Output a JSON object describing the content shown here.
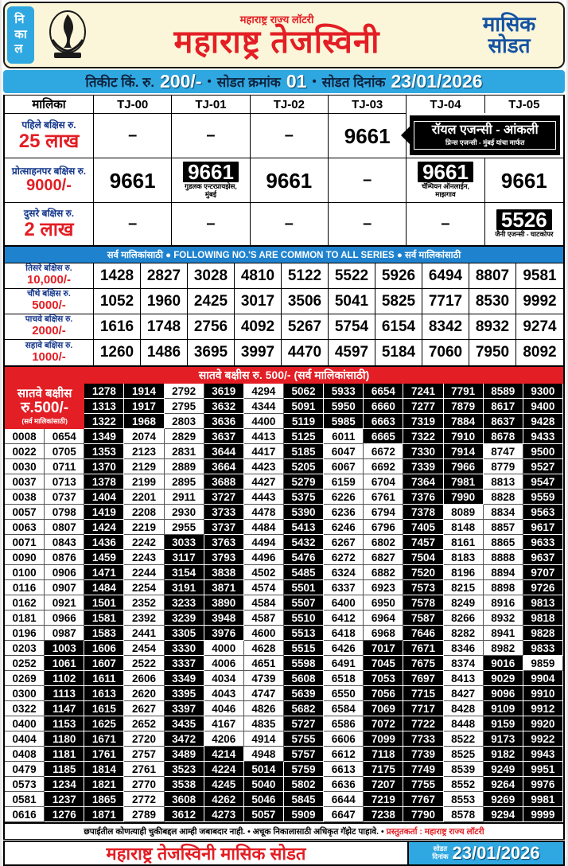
{
  "header": {
    "tab_vertical_text": "नि\nका\nल",
    "org_line": "महाराष्ट्र राज्य लॉटरी",
    "title": "महाराष्ट्र तेजस्विनी",
    "scheme_line1": "मासिक",
    "scheme_line2": "सोडत",
    "logo_icon": "maharashtra-lottery-emblem"
  },
  "info_bar": {
    "ticket_label": "तिकीट किं. रु.",
    "ticket_price": "200/-",
    "bullet": "•",
    "draw_label": "सोडत क्रमांक",
    "draw_number": "01",
    "date_label": "सोडत दिनांक",
    "draw_date": "23/01/2026"
  },
  "colors": {
    "accent_red": "#e31e24",
    "sky_blue": "#2fa8e1",
    "band_blue": "#1e82cf",
    "label_blue": "#14378c",
    "header_cream": "#fbf6d9"
  },
  "series_table": {
    "headers": [
      "मालिका",
      "TJ-00",
      "TJ-01",
      "TJ-02",
      "TJ-03",
      "TJ-04",
      "TJ-05"
    ],
    "first_prize": {
      "label1": "पहिले बक्षिस रु.",
      "label2": "25 लाख",
      "cells": [
        "–",
        "–",
        "–",
        "9661"
      ],
      "agent_box": {
        "name": "रॉयल एजन्सी - आंकली",
        "sub": "प्रिन्स एजन्सी - मुंबई यांचा मार्फत"
      }
    },
    "consolation_prize": {
      "label1": "प्रोत्साहनपर बक्षिस रु.",
      "label2": "9000/-",
      "cells": [
        {
          "value": "9661",
          "boxed": false,
          "agent": ""
        },
        {
          "value": "9661",
          "boxed": true,
          "agent": "गुडलक एन्टरप्रायझेस,\nमुंबई"
        },
        {
          "value": "9661",
          "boxed": false,
          "agent": ""
        },
        {
          "value": "–",
          "boxed": false,
          "agent": ""
        },
        {
          "value": "9661",
          "boxed": true,
          "agent": "चॅम्पियन ऑनलाईन,\nमाझगाव"
        },
        {
          "value": "9661",
          "boxed": false,
          "agent": ""
        }
      ]
    },
    "second_prize": {
      "label1": "दुसरे बक्षिस रु.",
      "label2": "2 लाख",
      "cells": [
        {
          "value": "–",
          "boxed": false,
          "agent": ""
        },
        {
          "value": "–",
          "boxed": false,
          "agent": ""
        },
        {
          "value": "–",
          "boxed": false,
          "agent": ""
        },
        {
          "value": "–",
          "boxed": false,
          "agent": ""
        },
        {
          "value": "–",
          "boxed": false,
          "agent": ""
        },
        {
          "value": "5526",
          "boxed": true,
          "agent": "जैनी एजन्सी - घाटकोपर"
        }
      ]
    }
  },
  "common_band_text": "सर्व मालिकांसाठी  ●  FOLLOWING NO.'S ARE COMMON TO ALL SERIES  ●  सर्व मालिकांसाठी",
  "common_prizes": [
    {
      "label1": "तिसरे बक्षिस रु.",
      "label2": "10,000/-",
      "numbers": [
        "1428",
        "2827",
        "3028",
        "4810",
        "5122",
        "5522",
        "5926",
        "6494",
        "8807",
        "9581"
      ]
    },
    {
      "label1": "चौथे बक्षिस रु.",
      "label2": "5000/-",
      "numbers": [
        "1052",
        "1960",
        "2425",
        "3017",
        "3506",
        "5041",
        "5825",
        "7717",
        "8530",
        "9992"
      ]
    },
    {
      "label1": "पाचवे बक्षिस रु.",
      "label2": "2000/-",
      "numbers": [
        "1616",
        "1748",
        "2756",
        "4092",
        "5267",
        "5754",
        "6154",
        "8342",
        "8932",
        "9274"
      ]
    },
    {
      "label1": "सहावे बक्षिस रु.",
      "label2": "1000/-",
      "numbers": [
        "1260",
        "1486",
        "3695",
        "3997",
        "4470",
        "4597",
        "5184",
        "7060",
        "7950",
        "8092"
      ]
    }
  ],
  "seventh_prize": {
    "band": "सातवे बक्षीस रु. 500/-  (सर्व मालिकांसाठी)",
    "side_label1": "सातवे बक्षीस",
    "side_label2": "रु.500/-",
    "side_label3": "(सर्व मालिकांसाठी)",
    "top_rows": [
      {
        "numbers": [
          "1278",
          "1914",
          "2792",
          "3619",
          "4294",
          "5062",
          "5933",
          "6654",
          "7241",
          "7791",
          "8589",
          "9300"
        ],
        "inv": "110101111111"
      },
      {
        "numbers": [
          "1313",
          "1917",
          "2795",
          "3632",
          "4344",
          "5091",
          "5950",
          "6660",
          "7277",
          "7879",
          "8617",
          "9400"
        ],
        "inv": "110101111111"
      },
      {
        "numbers": [
          "1322",
          "1968",
          "2803",
          "3636",
          "4400",
          "5119",
          "5985",
          "6663",
          "7319",
          "7884",
          "8637",
          "9428"
        ],
        "inv": "110101111111"
      }
    ],
    "rows": [
      {
        "numbers": [
          "0008",
          "0654",
          "1349",
          "2074",
          "2829",
          "3637",
          "4413",
          "5125",
          "6011",
          "6665",
          "7322",
          "7910",
          "8678",
          "9433"
        ],
        "inv": "00100101011111"
      },
      {
        "numbers": [
          "0022",
          "0705",
          "1353",
          "2123",
          "2831",
          "3644",
          "4417",
          "5185",
          "6047",
          "6672",
          "7330",
          "7914",
          "8747",
          "9500"
        ],
        "inv": "00100101001101"
      },
      {
        "numbers": [
          "0030",
          "0711",
          "1370",
          "2129",
          "2889",
          "3664",
          "4423",
          "5205",
          "6067",
          "6692",
          "7339",
          "7966",
          "8779",
          "9527"
        ],
        "inv": "00100101001101"
      },
      {
        "numbers": [
          "0037",
          "0713",
          "1378",
          "2199",
          "2895",
          "3688",
          "4427",
          "5279",
          "6159",
          "6704",
          "7364",
          "7981",
          "8813",
          "9547"
        ],
        "inv": "00100101001101"
      },
      {
        "numbers": [
          "0038",
          "0737",
          "1404",
          "2201",
          "2911",
          "3727",
          "4443",
          "5375",
          "6226",
          "6761",
          "7376",
          "7990",
          "8828",
          "9559"
        ],
        "inv": "00100101001101"
      },
      {
        "numbers": [
          "0057",
          "0798",
          "1419",
          "2208",
          "2930",
          "3733",
          "4478",
          "5390",
          "6236",
          "6794",
          "7378",
          "8089",
          "8834",
          "9563"
        ],
        "inv": "00100101001001"
      },
      {
        "numbers": [
          "0063",
          "0807",
          "1424",
          "2219",
          "2955",
          "3737",
          "4484",
          "5413",
          "6246",
          "6796",
          "7405",
          "8148",
          "8857",
          "9617"
        ],
        "inv": "00100101001001"
      },
      {
        "numbers": [
          "0071",
          "0843",
          "1436",
          "2242",
          "3033",
          "3763",
          "4494",
          "5432",
          "6267",
          "6802",
          "7457",
          "8161",
          "8865",
          "9633"
        ],
        "inv": "00101101001001"
      },
      {
        "numbers": [
          "0090",
          "0876",
          "1459",
          "2243",
          "3117",
          "3793",
          "4496",
          "5476",
          "6272",
          "6827",
          "7504",
          "8183",
          "8888",
          "9637"
        ],
        "inv": "00101101001001"
      },
      {
        "numbers": [
          "0100",
          "0906",
          "1471",
          "2244",
          "3154",
          "3838",
          "4502",
          "5485",
          "6324",
          "6882",
          "7520",
          "8196",
          "8894",
          "9707"
        ],
        "inv": "00101101001001"
      },
      {
        "numbers": [
          "0116",
          "0907",
          "1484",
          "2254",
          "3191",
          "3871",
          "4574",
          "5501",
          "6337",
          "6923",
          "7573",
          "8215",
          "8898",
          "9726"
        ],
        "inv": "00101101001001"
      },
      {
        "numbers": [
          "0162",
          "0921",
          "1501",
          "2352",
          "3233",
          "3890",
          "4584",
          "5507",
          "6400",
          "6950",
          "7578",
          "8249",
          "8916",
          "9813"
        ],
        "inv": "00101101001001"
      },
      {
        "numbers": [
          "0181",
          "0966",
          "1581",
          "2392",
          "3239",
          "3948",
          "4587",
          "5510",
          "6412",
          "6964",
          "7587",
          "8266",
          "8932",
          "9818"
        ],
        "inv": "00101101001001"
      },
      {
        "numbers": [
          "0196",
          "0987",
          "1583",
          "2441",
          "3305",
          "3976",
          "4600",
          "5513",
          "6418",
          "6968",
          "7646",
          "8282",
          "8941",
          "9828"
        ],
        "inv": "00101101001001"
      },
      {
        "numbers": [
          "0203",
          "1003",
          "1606",
          "2454",
          "3330",
          "4000",
          "4628",
          "5515",
          "6426",
          "7017",
          "7671",
          "8346",
          "8982",
          "9833"
        ],
        "inv": "01101001011001"
      },
      {
        "numbers": [
          "0252",
          "1061",
          "1607",
          "2522",
          "3337",
          "4006",
          "4651",
          "5598",
          "6491",
          "7045",
          "7675",
          "8374",
          "9016",
          "9859"
        ],
        "inv": "01101001011010"
      },
      {
        "numbers": [
          "0269",
          "1102",
          "1611",
          "2606",
          "3349",
          "4034",
          "4739",
          "5608",
          "6518",
          "7053",
          "7697",
          "8413",
          "9029",
          "9904"
        ],
        "inv": "01101001011011"
      },
      {
        "numbers": [
          "0300",
          "1113",
          "1613",
          "2620",
          "3395",
          "4043",
          "4747",
          "5639",
          "6550",
          "7056",
          "7715",
          "8427",
          "9096",
          "9910"
        ],
        "inv": "01101001011011"
      },
      {
        "numbers": [
          "0322",
          "1147",
          "1615",
          "2627",
          "3397",
          "4046",
          "4826",
          "5682",
          "6584",
          "7069",
          "7717",
          "8428",
          "9109",
          "9912"
        ],
        "inv": "01101001011011"
      },
      {
        "numbers": [
          "0400",
          "1153",
          "1625",
          "2652",
          "3435",
          "4167",
          "4835",
          "5727",
          "6586",
          "7072",
          "7722",
          "8448",
          "9159",
          "9920"
        ],
        "inv": "01101001011011"
      },
      {
        "numbers": [
          "0404",
          "1180",
          "1671",
          "2720",
          "3472",
          "4206",
          "4914",
          "5755",
          "6606",
          "7099",
          "7733",
          "8522",
          "9173",
          "9922"
        ],
        "inv": "01101001011011"
      },
      {
        "numbers": [
          "0408",
          "1181",
          "1761",
          "2757",
          "3489",
          "4214",
          "4948",
          "5757",
          "6612",
          "7118",
          "7739",
          "8525",
          "9182",
          "9943"
        ],
        "inv": "01101101011011"
      },
      {
        "numbers": [
          "0479",
          "1185",
          "1814",
          "2761",
          "3523",
          "4224",
          "5014",
          "5759",
          "6613",
          "7175",
          "7749",
          "8539",
          "9249",
          "9951"
        ],
        "inv": "01101111011011"
      },
      {
        "numbers": [
          "0573",
          "1234",
          "1821",
          "2770",
          "3538",
          "4245",
          "5040",
          "5802",
          "6636",
          "7207",
          "7755",
          "8552",
          "9264",
          "9976"
        ],
        "inv": "01101111011011"
      },
      {
        "numbers": [
          "0581",
          "1237",
          "1865",
          "2772",
          "3608",
          "4262",
          "5046",
          "5845",
          "6644",
          "7219",
          "7767",
          "8553",
          "9269",
          "9981"
        ],
        "inv": "01101111011011"
      },
      {
        "numbers": [
          "0616",
          "1276",
          "1871",
          "2789",
          "3612",
          "4273",
          "5057",
          "5909",
          "6647",
          "7238",
          "7790",
          "8578",
          "9294",
          "9999"
        ],
        "inv": "01101111011011"
      }
    ]
  },
  "disclaimer": {
    "text": "छपाईतील कोणत्याही चुकीबद्दल आम्ही जबाबदार नाही. • अचूक निकालासाठी अधिकृत गॅझेट पाहावे. •",
    "presenter": "प्रस्तुतकर्ता : महाराष्ट्र राज्य लॉटरी"
  },
  "footer": {
    "title": "महाराष्ट्र तेजस्विनी मासिक सोडत",
    "date_label_line1": "सोडत",
    "date_label_line2": "दिनांक",
    "date": "23/01/2026"
  }
}
